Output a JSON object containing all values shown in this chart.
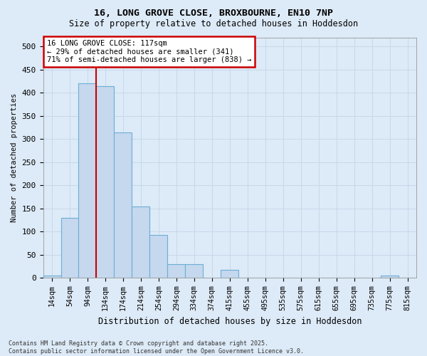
{
  "title1": "16, LONG GROVE CLOSE, BROXBOURNE, EN10 7NP",
  "title2": "Size of property relative to detached houses in Hoddesdon",
  "xlabel": "Distribution of detached houses by size in Hoddesdon",
  "ylabel": "Number of detached properties",
  "footnote": "Contains HM Land Registry data © Crown copyright and database right 2025.\nContains public sector information licensed under the Open Government Licence v3.0.",
  "bins": [
    "14sqm",
    "54sqm",
    "94sqm",
    "134sqm",
    "174sqm",
    "214sqm",
    "254sqm",
    "294sqm",
    "334sqm",
    "374sqm",
    "415sqm",
    "455sqm",
    "495sqm",
    "535sqm",
    "575sqm",
    "615sqm",
    "655sqm",
    "695sqm",
    "735sqm",
    "775sqm",
    "815sqm"
  ],
  "values": [
    5,
    130,
    420,
    415,
    315,
    155,
    93,
    30,
    30,
    0,
    18,
    0,
    0,
    0,
    0,
    0,
    0,
    0,
    0,
    5,
    0
  ],
  "bar_color": "#c5d8ee",
  "bar_edge_color": "#6baed6",
  "grid_color": "#c8d8ea",
  "bg_color": "#ddeaf7",
  "annotation_text": "16 LONG GROVE CLOSE: 117sqm\n← 29% of detached houses are smaller (341)\n71% of semi-detached houses are larger (838) →",
  "annotation_box_color": "#ffffff",
  "annotation_box_edge": "#cc0000",
  "red_line_x": 2.5,
  "ylim": [
    0,
    520
  ],
  "yticks": [
    0,
    50,
    100,
    150,
    200,
    250,
    300,
    350,
    400,
    450,
    500
  ]
}
